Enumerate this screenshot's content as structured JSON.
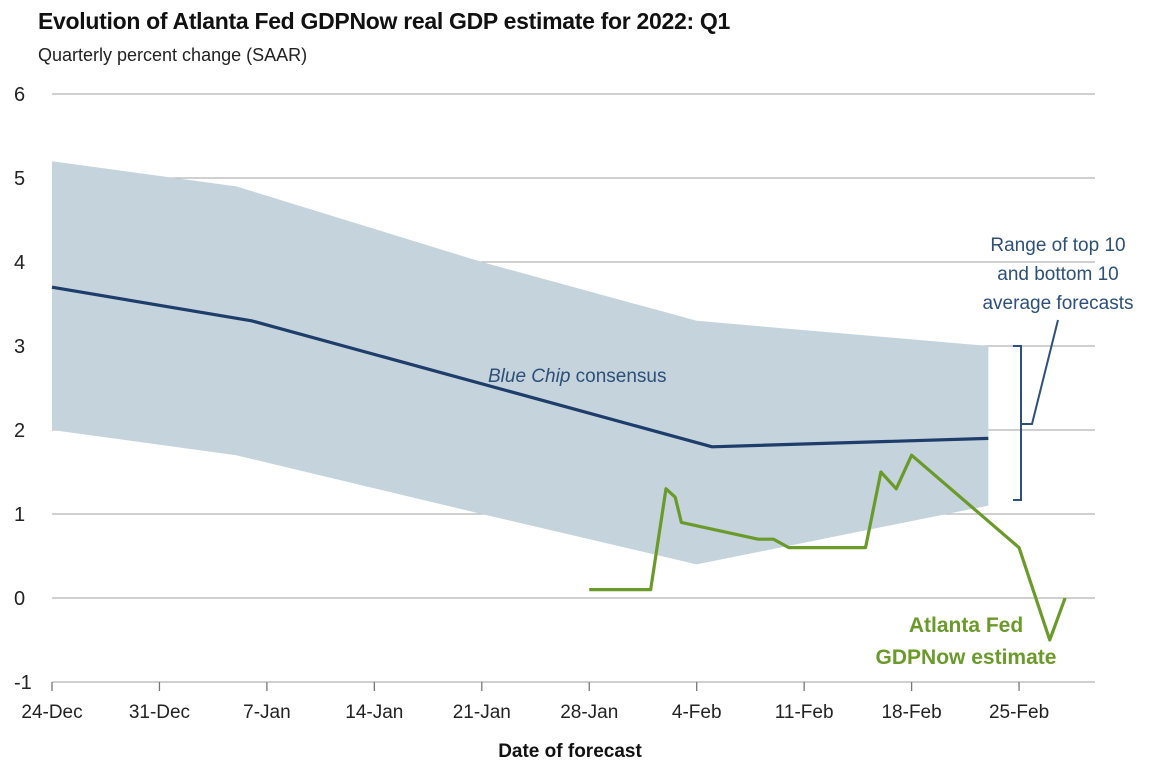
{
  "chart_data": {
    "type": "line",
    "title": "Evolution of Atlanta Fed GDPNow real GDP estimate for 2022: Q1",
    "subtitle": "Quarterly percent change (SAAR)",
    "xlabel": "Date of forecast",
    "ylabel": "",
    "ylim": [
      -1,
      6
    ],
    "yticks": [
      "6",
      "5",
      "4",
      "3",
      "2",
      "1",
      "0",
      "-1"
    ],
    "ytick_values": [
      6,
      5,
      4,
      3,
      2,
      1,
      0,
      -1
    ],
    "xticks": [
      "24-Dec",
      "31-Dec",
      "7-Jan",
      "14-Jan",
      "21-Jan",
      "28-Jan",
      "4-Feb",
      "11-Feb",
      "18-Feb",
      "25-Feb"
    ],
    "xtick_days": [
      0,
      7,
      14,
      21,
      28,
      35,
      42,
      49,
      56,
      63
    ],
    "grid": true,
    "series": [
      {
        "name": "Blue Chip consensus",
        "kind": "line",
        "color": "#1f3d6b",
        "x": [
          0,
          13,
          35,
          43,
          61
        ],
        "y": [
          3.7,
          3.3,
          2.2,
          1.8,
          1.9
        ]
      },
      {
        "name": "Range of top 10 and bottom 10 average forecasts",
        "kind": "band",
        "color": "#c5d3dc",
        "x": [
          0,
          12,
          28,
          42,
          61
        ],
        "upper": [
          5.2,
          4.9,
          4.0,
          3.3,
          3.0
        ],
        "lower": [
          2.0,
          1.7,
          1.0,
          0.4,
          1.1
        ]
      },
      {
        "name": "Atlanta Fed GDPNow estimate",
        "kind": "line",
        "color": "#6a9a2a",
        "x": [
          35,
          39,
          40,
          40.6,
          41,
          46,
          47,
          48,
          53,
          54,
          55,
          56,
          63,
          65,
          66
        ],
        "y": [
          0.1,
          0.1,
          1.3,
          1.2,
          0.9,
          0.7,
          0.7,
          0.6,
          0.6,
          1.5,
          1.3,
          1.7,
          0.6,
          -0.5,
          0.0
        ]
      }
    ],
    "annotations": {
      "range": [
        "Range of top 10",
        "and bottom 10",
        "average forecasts"
      ],
      "blue_chip_italic": "Blue Chip",
      "blue_chip_rest": " consensus",
      "gdpnow": [
        "Atlanta Fed",
        "GDPNow estimate"
      ]
    }
  }
}
